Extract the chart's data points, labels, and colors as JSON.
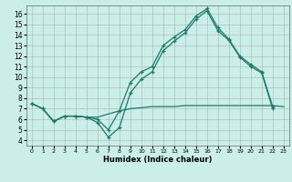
{
  "xlabel": "Humidex (Indice chaleur)",
  "bg_color": "#cceee8",
  "grid_color": "#b0b0b0",
  "line_color": "#1a7a6e",
  "xlim": [
    -0.5,
    23.5
  ],
  "ylim": [
    3.5,
    16.8
  ],
  "xticks": [
    0,
    1,
    2,
    3,
    4,
    5,
    6,
    7,
    8,
    9,
    10,
    11,
    12,
    13,
    14,
    15,
    16,
    17,
    18,
    19,
    20,
    21,
    22,
    23
  ],
  "yticks": [
    4,
    5,
    6,
    7,
    8,
    9,
    10,
    11,
    12,
    13,
    14,
    15,
    16
  ],
  "line1_x": [
    0,
    1,
    2,
    3,
    4,
    5,
    6,
    7,
    8,
    9,
    10,
    11,
    12,
    13,
    14,
    15,
    16,
    17,
    18,
    19,
    20,
    21,
    22
  ],
  "line1_y": [
    7.5,
    7.0,
    5.8,
    6.3,
    6.3,
    6.2,
    6.0,
    5.0,
    6.8,
    9.5,
    10.5,
    11.0,
    13.0,
    13.8,
    14.5,
    15.8,
    16.5,
    14.7,
    13.6,
    12.0,
    11.2,
    10.5,
    7.2
  ],
  "line2_x": [
    0,
    1,
    2,
    3,
    4,
    5,
    6,
    7,
    8,
    9,
    10,
    11,
    12,
    13,
    14,
    15,
    16,
    17,
    18,
    19,
    20,
    21,
    22,
    23
  ],
  "line2_y": [
    7.5,
    7.0,
    5.8,
    6.3,
    6.3,
    6.2,
    6.2,
    6.5,
    6.8,
    7.0,
    7.1,
    7.2,
    7.2,
    7.2,
    7.3,
    7.3,
    7.3,
    7.3,
    7.3,
    7.3,
    7.3,
    7.3,
    7.3,
    7.2
  ],
  "line3_x": [
    0,
    1,
    2,
    3,
    4,
    5,
    6,
    7,
    8,
    9,
    10,
    11,
    12,
    13,
    14,
    15,
    16,
    17,
    18,
    19,
    20,
    21,
    22
  ],
  "line3_y": [
    7.5,
    7.0,
    5.8,
    6.3,
    6.3,
    6.2,
    5.7,
    4.3,
    5.2,
    8.5,
    9.8,
    10.5,
    12.5,
    13.4,
    14.2,
    15.5,
    16.3,
    14.4,
    13.5,
    11.9,
    11.0,
    10.4,
    7.0
  ]
}
